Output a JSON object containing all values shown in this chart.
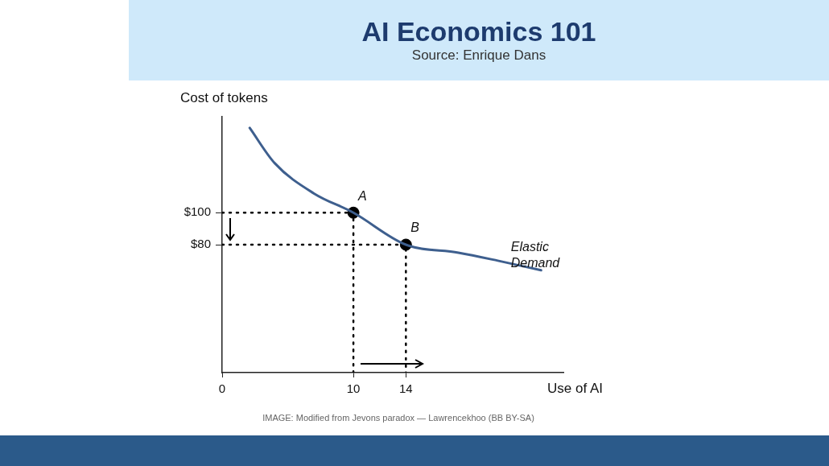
{
  "chart_data": {
    "type": "line",
    "title": "AI Economics 101",
    "subtitle": "Source: Enrique Dans",
    "xlabel": "Use of AI",
    "ylabel": "Cost of tokens",
    "xlim": [
      0,
      26
    ],
    "xticks": [
      0,
      10,
      14
    ],
    "ylim": [
      0,
      160
    ],
    "yticks": [
      {
        "value": 80,
        "label": "$80"
      },
      {
        "value": 100,
        "label": "$100"
      }
    ],
    "grid": false,
    "legend": false,
    "series": [
      {
        "type": "line",
        "color": "#3e5f8e",
        "marker": "none",
        "x": [
          2.1,
          4,
          7,
          10,
          14,
          18,
          21,
          24.3
        ],
        "values": [
          153,
          131,
          112,
          100,
          80,
          75,
          70,
          64
        ]
      },
      {
        "type": "line",
        "color": "#000000",
        "marker": "none",
        "line_style": "dotted",
        "x": [
          0,
          10,
          10
        ],
        "values": [
          100,
          100,
          0
        ]
      },
      {
        "type": "line",
        "color": "#000000",
        "marker": "none",
        "line_style": "dotted",
        "x": [
          0,
          14,
          14
        ],
        "values": [
          80,
          80,
          0
        ]
      },
      {
        "type": "scatter",
        "color": "#000000",
        "marker": "circle",
        "x": [
          10,
          14
        ],
        "values": [
          100,
          80
        ]
      }
    ],
    "annotations": [
      {
        "text": "A",
        "x": 10,
        "y": 100
      },
      {
        "text": "B",
        "x": 14,
        "y": 80
      },
      {
        "text": "Elastic Demand",
        "x": 22,
        "y": 70
      },
      "IMAGE: Modified from Jevons paradox — Lawrencekhoo (BB BY-SA)"
    ]
  }
}
